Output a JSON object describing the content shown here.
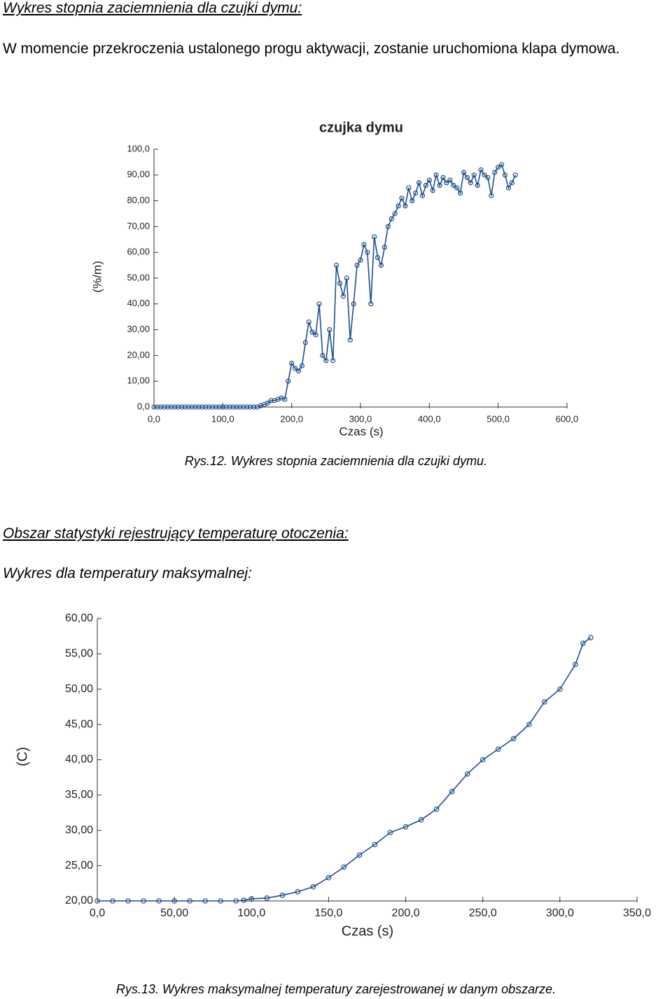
{
  "document": {
    "heading1": "Wykres stopnia zaciemnienia dla czujki dymu:",
    "paragraph": "W momencie przekroczenia ustalonego progu aktywacji, zostanie uruchomiona klapa dymowa.",
    "caption1": "Rys.12. Wykres stopnia zaciemnienia dla czujki dymu.",
    "heading2": "Obszar statystyki rejestrujący temperaturę otoczenia:",
    "subheading": "Wykres dla temperatury maksymalnej:",
    "caption2": "Rys.13. Wykres maksymalnej temperatury zarejestrowanej w danym obszarze."
  },
  "chart_data": [
    {
      "type": "line",
      "title": "czujka dymu",
      "x_label": "Czas (s)",
      "y_label": "(%/m)",
      "color": "#1f4e8c",
      "x": [
        0,
        5,
        10,
        15,
        20,
        25,
        30,
        35,
        40,
        45,
        50,
        55,
        60,
        65,
        70,
        75,
        80,
        85,
        90,
        95,
        100,
        105,
        110,
        115,
        120,
        125,
        130,
        135,
        140,
        145,
        150,
        155,
        160,
        165,
        170,
        175,
        180,
        185,
        190,
        195,
        200,
        205,
        210,
        215,
        220,
        225,
        230,
        235,
        240,
        245,
        250,
        255,
        260,
        265,
        270,
        275,
        280,
        285,
        290,
        295,
        300,
        305,
        310,
        315,
        320,
        325,
        330,
        335,
        340,
        345,
        350,
        355,
        360,
        365,
        370,
        375,
        380,
        385,
        390,
        395,
        400,
        405,
        410,
        415,
        420,
        425,
        430,
        435,
        440,
        445,
        450,
        455,
        460,
        465,
        470,
        475,
        480,
        485,
        490,
        495,
        500,
        505,
        510,
        515,
        520,
        525
      ],
      "values": [
        0,
        0,
        0,
        0,
        0,
        0,
        0,
        0,
        0,
        0,
        0,
        0,
        0,
        0,
        0,
        0,
        0,
        0,
        0,
        0,
        0,
        0,
        0,
        0,
        0,
        0,
        0,
        0,
        0,
        0,
        0,
        0.5,
        1,
        1.5,
        2.5,
        2.5,
        3,
        3.5,
        3,
        10,
        17,
        15,
        14,
        16,
        25,
        33,
        29,
        28,
        40,
        20,
        18,
        30,
        18,
        55,
        48,
        43,
        50,
        26,
        40,
        55,
        57,
        63,
        60,
        40,
        66,
        58,
        55,
        62,
        70,
        73,
        75,
        78,
        81,
        78,
        85,
        80,
        83,
        87,
        82,
        86,
        88,
        84,
        90,
        86,
        89,
        87,
        88,
        86,
        85,
        83,
        91,
        89,
        87,
        90,
        86,
        92,
        90,
        89,
        82,
        91,
        93,
        94,
        90,
        85,
        87,
        90
      ],
      "xlim": [
        0,
        600
      ],
      "xticks": [
        {
          "value": 0,
          "label": "0,0"
        },
        {
          "value": 100,
          "label": "100,0"
        },
        {
          "value": 200,
          "label": "200,0"
        },
        {
          "value": 300,
          "label": "300,0"
        },
        {
          "value": 400,
          "label": "400,0"
        },
        {
          "value": 500,
          "label": "500,0"
        },
        {
          "value": 600,
          "label": "600,0"
        }
      ],
      "ylim": [
        0,
        100
      ],
      "yticks": [
        {
          "value": 0,
          "label": "0,0"
        },
        {
          "value": 10,
          "label": "10,00"
        },
        {
          "value": 20,
          "label": "20,00"
        },
        {
          "value": 30,
          "label": "30,00"
        },
        {
          "value": 40,
          "label": "40,00"
        },
        {
          "value": 50,
          "label": "50,00"
        },
        {
          "value": 60,
          "label": "60,00"
        },
        {
          "value": 70,
          "label": "70,00"
        },
        {
          "value": 80,
          "label": "80,00"
        },
        {
          "value": 90,
          "label": "90,00"
        },
        {
          "value": 100,
          "label": "100,0"
        }
      ]
    },
    {
      "type": "line",
      "x_label": "Czas (s)",
      "y_label": "(C)",
      "color": "#1f4e8c",
      "x": [
        0,
        10,
        20,
        30,
        40,
        50,
        60,
        70,
        80,
        90,
        95,
        100,
        110,
        120,
        130,
        140,
        150,
        160,
        170,
        180,
        190,
        200,
        210,
        220,
        230,
        240,
        250,
        260,
        270,
        280,
        290,
        300,
        310,
        315,
        320
      ],
      "values": [
        20,
        20,
        20,
        20,
        20,
        20,
        20,
        20,
        20,
        20,
        20.1,
        20.3,
        20.4,
        20.8,
        21.3,
        22,
        23.3,
        24.8,
        26.5,
        28,
        29.7,
        30.5,
        31.5,
        33,
        35.5,
        38,
        40,
        41.5,
        43,
        45,
        48.2,
        50,
        53.5,
        56.5,
        57.3
      ],
      "xlim": [
        0,
        350
      ],
      "xticks": [
        {
          "value": 0,
          "label": "0,0"
        },
        {
          "value": 50,
          "label": "50,00"
        },
        {
          "value": 100,
          "label": "100,0"
        },
        {
          "value": 150,
          "label": "150,0"
        },
        {
          "value": 200,
          "label": "200,0"
        },
        {
          "value": 250,
          "label": "250,0"
        },
        {
          "value": 300,
          "label": "300,0"
        },
        {
          "value": 350,
          "label": "350,0"
        }
      ],
      "ylim": [
        20,
        60
      ],
      "yticks": [
        {
          "value": 20,
          "label": "20,00"
        },
        {
          "value": 25,
          "label": "25,00"
        },
        {
          "value": 30,
          "label": "30,00"
        },
        {
          "value": 35,
          "label": "35,00"
        },
        {
          "value": 40,
          "label": "40,00"
        },
        {
          "value": 45,
          "label": "45,00"
        },
        {
          "value": 50,
          "label": "50,00"
        },
        {
          "value": 55,
          "label": "55,00"
        },
        {
          "value": 60,
          "label": "60,00"
        }
      ]
    }
  ]
}
